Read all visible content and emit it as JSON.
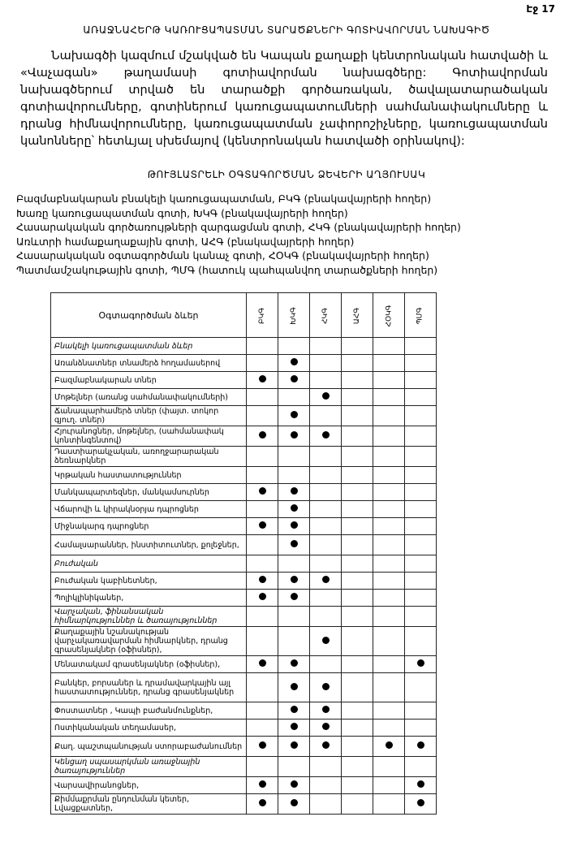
{
  "page_number": "Էջ 17",
  "title": "ԱՌԱՋՆԱՀԵՐԹ ԿԱՌՈՒՑԱՊԱՏՄԱՆ ՏԱՐԱԾՔՆԵՐԻ ԳՈՏԻԱՎՈՐՄԱՆ ՆԱԽԱԳԻԾ",
  "paragraph": "Նախագծի կազմում մշակված են Կապան քաղաքի կենտրոնական հատվածի և «Վաչագան» թաղամասի գոտիավորման նախագծերը: Գոտիավորման նախագծերում տրված են տարածքի գործառական, ծավալատարածական գոտիավորումները, գոտիներում կառուցապատումների սահմանափակումները և դրանց հիմնավորումները, կառուցապատման չափորոշիչները, կառուցապատման կանոնները՝ հետևյալ սխեմայով (կենտրոնական հատվածի օրինակով):",
  "subtitle": "ԹՈՒՅԼԱՏՐԵԼԻ ՕԳՏԱԳՈՐԾՄԱՆ ՁԵՎԵՐԻ ԱՂՅՈՒՍԱԿ",
  "zones": [
    "Բազմաբնակարան բնակելի կառուցապատման, ԲԿԳ  (բնակավայրերի հողեր)",
    "Խառը կառուցապատման գոտի, ԽԿԳ  (բնակավայրերի հողեր)",
    "Հասարակական գործառույթների զարգացման գոտի, ՀԿԳ (բնակավայրերի հողեր)",
    "Առևտրի համաքաղաքային գոտի, ԱՀԳ  (բնակավայրերի հողեր)",
    "Հասարակական օգտագործման կանաչ գոտի, ՀՕԿԳ (բնակավայրերի հողեր)",
    "Պատմամշակութային գոտի, ՊՄԳ (հատուկ պահպանվող տարածքների հողեր)"
  ],
  "table": {
    "header": "Օգտագործման ձևեր",
    "columns": [
      "ԲԿԳ",
      "ԽԿԳ",
      "ՀԿԳ",
      "ԱՀԳ",
      "ՀՕԿԳ",
      "ՊՄԳ"
    ],
    "rows": [
      {
        "label": "Բնակելի կառուցապատման ձևեր",
        "category": true,
        "marks": []
      },
      {
        "label": "Առանձնատներ տնամերձ հողամասերով",
        "marks": [
          1
        ]
      },
      {
        "label": "Բազմաբնակարան տներ",
        "marks": [
          0,
          1
        ]
      },
      {
        "label": "Մոթելներ (առանց սահմանափակումների)",
        "marks": [
          2
        ]
      },
      {
        "label": "Ճանապարհամերձ տներ (փայտ. տոկոր գյուղ. տներ)",
        "marks": [
          1
        ]
      },
      {
        "label": "Հյուրանոցներ, մոթելներ, (սահմանափակ կոնտինգենտով)",
        "marks": [
          0,
          1,
          2
        ]
      },
      {
        "label": "Դաստիարակչական, առողջարարական ձեռնարկներ",
        "marks": []
      },
      {
        "label": "Կրթական հաստատություններ",
        "marks": []
      },
      {
        "label": "Մանկապարտեզներ, մանկամսուրներ",
        "marks": [
          0,
          1
        ]
      },
      {
        "label": "Վճարովի և կիրակնօրյա դպրոցներ",
        "marks": [
          1
        ]
      },
      {
        "label": "Միջնակարգ դպրոցներ",
        "marks": [
          0,
          1
        ]
      },
      {
        "label": "Համալսարաններ, ինստիտուտներ, քոլեջներ,",
        "marks": [
          1
        ]
      },
      {
        "label": "Բուժական",
        "category": true,
        "marks": []
      },
      {
        "label": "Բուժական կաբինետներ,",
        "marks": [
          0,
          1,
          2
        ]
      },
      {
        "label": "Պոլիկլինիկաներ,",
        "marks": [
          0,
          1
        ]
      },
      {
        "label": "Վարչական, ֆինանսական հիմնարկություններ և ծառայություններ",
        "category": true,
        "marks": []
      },
      {
        "label": "Քաղաքային նշանակության վարչակառավարման հիմնարկներ, դրանց գրասենյակներ (օֆիսներ),",
        "marks": [
          2
        ]
      },
      {
        "label": "Մենատակամ գրասենյակներ (օֆիսներ),",
        "marks": [
          0,
          1,
          5
        ]
      },
      {
        "label": "Բանկեր, բորսաներ և դրամավարկային այլ հաստատություններ, դրանց գրասենյակներ",
        "marks": [
          1,
          2
        ]
      },
      {
        "label": "Փոստատներ , Կապի բաժանմունքներ,",
        "marks": [
          1,
          2
        ]
      },
      {
        "label": "Ոստիկանական տեղամասեր,",
        "marks": [
          1,
          2
        ]
      },
      {
        "label": "Քաղ. պաշտպանության ստորաբաժանումներ",
        "marks": [
          0,
          1,
          2,
          4,
          5
        ]
      },
      {
        "label": "Կենցաղ սպասարկման առաջնային ծառայություններ",
        "category": true,
        "marks": []
      },
      {
        "label": "Վարսավիրանոցներ,",
        "marks": [
          0,
          1,
          5
        ]
      },
      {
        "label": "Քիմմաքրման ընդունման կետեր, Լվացքատներ,",
        "marks": [
          0,
          1,
          5
        ]
      }
    ]
  }
}
